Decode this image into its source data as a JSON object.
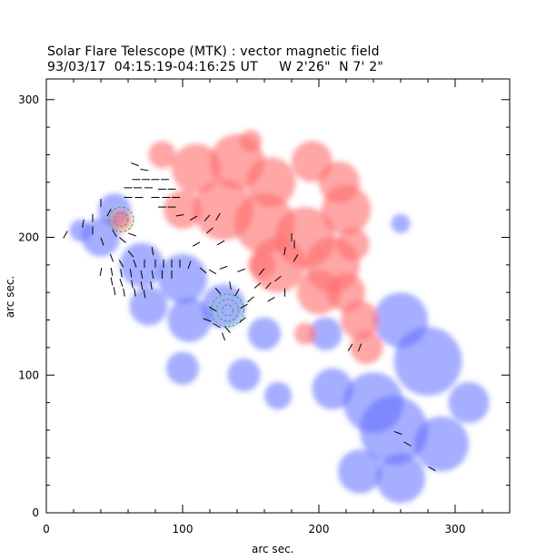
{
  "title": "Solar Flare Telescope (MTK) : vector magnetic field",
  "subtitle": "93/03/17  04:15:19-04:16:25 UT     W 2'26\"  N 7' 2\"",
  "chart_data": {
    "type": "heatmap",
    "xlabel": "arc sec.",
    "ylabel": "arc sec.",
    "xlim": [
      0,
      340
    ],
    "ylim": [
      0,
      315
    ],
    "xticks": [
      0,
      100,
      200,
      300
    ],
    "yticks": [
      0,
      100,
      200,
      300
    ],
    "colors": {
      "positive": "#ff6e6e",
      "negative": "#5c6cff",
      "contour": "#22bb44",
      "vector": "#000000",
      "axis": "#000000"
    },
    "positive_regions": [
      {
        "x": 85,
        "y": 260,
        "r": 10
      },
      {
        "x": 110,
        "y": 250,
        "r": 18
      },
      {
        "x": 140,
        "y": 255,
        "r": 20
      },
      {
        "x": 165,
        "y": 240,
        "r": 18
      },
      {
        "x": 195,
        "y": 255,
        "r": 15
      },
      {
        "x": 215,
        "y": 240,
        "r": 15
      },
      {
        "x": 220,
        "y": 220,
        "r": 18
      },
      {
        "x": 130,
        "y": 220,
        "r": 22
      },
      {
        "x": 160,
        "y": 210,
        "r": 22
      },
      {
        "x": 190,
        "y": 200,
        "r": 22
      },
      {
        "x": 170,
        "y": 180,
        "r": 20
      },
      {
        "x": 210,
        "y": 180,
        "r": 20
      },
      {
        "x": 200,
        "y": 160,
        "r": 16
      },
      {
        "x": 225,
        "y": 195,
        "r": 12
      },
      {
        "x": 220,
        "y": 160,
        "r": 14
      },
      {
        "x": 230,
        "y": 140,
        "r": 14
      },
      {
        "x": 235,
        "y": 120,
        "r": 12
      },
      {
        "x": 100,
        "y": 220,
        "r": 14
      },
      {
        "x": 55,
        "y": 212,
        "r": 8
      },
      {
        "x": 190,
        "y": 130,
        "r": 8
      },
      {
        "x": 150,
        "y": 270,
        "r": 8
      },
      {
        "x": 158,
        "y": 180,
        "r": 10
      }
    ],
    "negative_regions": [
      {
        "x": 50,
        "y": 220,
        "r": 12
      },
      {
        "x": 40,
        "y": 200,
        "r": 14
      },
      {
        "x": 25,
        "y": 205,
        "r": 8
      },
      {
        "x": 70,
        "y": 180,
        "r": 16
      },
      {
        "x": 100,
        "y": 170,
        "r": 18
      },
      {
        "x": 130,
        "y": 150,
        "r": 16
      },
      {
        "x": 75,
        "y": 150,
        "r": 14
      },
      {
        "x": 105,
        "y": 140,
        "r": 16
      },
      {
        "x": 160,
        "y": 130,
        "r": 12
      },
      {
        "x": 205,
        "y": 130,
        "r": 12
      },
      {
        "x": 255,
        "y": 60,
        "r": 25
      },
      {
        "x": 280,
        "y": 110,
        "r": 25
      },
      {
        "x": 260,
        "y": 140,
        "r": 20
      },
      {
        "x": 240,
        "y": 80,
        "r": 22
      },
      {
        "x": 290,
        "y": 50,
        "r": 20
      },
      {
        "x": 210,
        "y": 90,
        "r": 15
      },
      {
        "x": 260,
        "y": 25,
        "r": 18
      },
      {
        "x": 230,
        "y": 30,
        "r": 16
      },
      {
        "x": 310,
        "y": 80,
        "r": 15
      },
      {
        "x": 100,
        "y": 105,
        "r": 12
      },
      {
        "x": 145,
        "y": 100,
        "r": 12
      },
      {
        "x": 170,
        "y": 85,
        "r": 10
      },
      {
        "x": 260,
        "y": 210,
        "r": 7
      }
    ],
    "contours": [
      {
        "x": 133,
        "y": 147,
        "radii": [
          4,
          8,
          12
        ]
      },
      {
        "x": 55,
        "y": 213,
        "radii": [
          5,
          9
        ]
      }
    ],
    "vectors": [
      {
        "x": 65,
        "y": 253,
        "a": 160
      },
      {
        "x": 72,
        "y": 249,
        "a": 170
      },
      {
        "x": 66,
        "y": 242,
        "a": 0
      },
      {
        "x": 73,
        "y": 242,
        "a": 0
      },
      {
        "x": 80,
        "y": 242,
        "a": 0
      },
      {
        "x": 87,
        "y": 242,
        "a": 0
      },
      {
        "x": 60,
        "y": 236,
        "a": 0
      },
      {
        "x": 67,
        "y": 236,
        "a": 0
      },
      {
        "x": 75,
        "y": 236,
        "a": 0
      },
      {
        "x": 85,
        "y": 235,
        "a": 0
      },
      {
        "x": 92,
        "y": 235,
        "a": 0
      },
      {
        "x": 60,
        "y": 229,
        "a": 0
      },
      {
        "x": 68,
        "y": 229,
        "a": 0
      },
      {
        "x": 80,
        "y": 229,
        "a": 0
      },
      {
        "x": 88,
        "y": 229,
        "a": 0
      },
      {
        "x": 95,
        "y": 229,
        "a": 0
      },
      {
        "x": 85,
        "y": 222,
        "a": 0
      },
      {
        "x": 92,
        "y": 222,
        "a": 0
      },
      {
        "x": 98,
        "y": 216,
        "a": 10
      },
      {
        "x": 108,
        "y": 214,
        "a": 30
      },
      {
        "x": 118,
        "y": 214,
        "a": 50
      },
      {
        "x": 126,
        "y": 215,
        "a": 60
      },
      {
        "x": 120,
        "y": 205,
        "a": 40
      },
      {
        "x": 128,
        "y": 196,
        "a": 30
      },
      {
        "x": 110,
        "y": 195,
        "a": 30
      },
      {
        "x": 40,
        "y": 225,
        "a": 90
      },
      {
        "x": 46,
        "y": 218,
        "a": 60
      },
      {
        "x": 34,
        "y": 214,
        "a": 90
      },
      {
        "x": 34,
        "y": 205,
        "a": 90
      },
      {
        "x": 27,
        "y": 210,
        "a": 80
      },
      {
        "x": 14,
        "y": 202,
        "a": 60
      },
      {
        "x": 50,
        "y": 203,
        "a": 120
      },
      {
        "x": 56,
        "y": 198,
        "a": 140
      },
      {
        "x": 41,
        "y": 197,
        "a": 110
      },
      {
        "x": 63,
        "y": 202,
        "a": 160
      },
      {
        "x": 62,
        "y": 188,
        "a": 130
      },
      {
        "x": 78,
        "y": 190,
        "a": 100
      },
      {
        "x": 48,
        "y": 185,
        "a": 110
      },
      {
        "x": 55,
        "y": 181,
        "a": 120
      },
      {
        "x": 65,
        "y": 181,
        "a": 110
      },
      {
        "x": 72,
        "y": 181,
        "a": 90
      },
      {
        "x": 80,
        "y": 181,
        "a": 90
      },
      {
        "x": 86,
        "y": 181,
        "a": 90
      },
      {
        "x": 92,
        "y": 181,
        "a": 90
      },
      {
        "x": 98,
        "y": 181,
        "a": 90
      },
      {
        "x": 105,
        "y": 180,
        "a": 70
      },
      {
        "x": 40,
        "y": 175,
        "a": 80
      },
      {
        "x": 48,
        "y": 175,
        "a": 100
      },
      {
        "x": 55,
        "y": 174,
        "a": 100
      },
      {
        "x": 62,
        "y": 174,
        "a": 100
      },
      {
        "x": 70,
        "y": 173,
        "a": 100
      },
      {
        "x": 78,
        "y": 173,
        "a": 100
      },
      {
        "x": 85,
        "y": 173,
        "a": 90
      },
      {
        "x": 92,
        "y": 173,
        "a": 90
      },
      {
        "x": 48,
        "y": 168,
        "a": 100
      },
      {
        "x": 55,
        "y": 167,
        "a": 110
      },
      {
        "x": 63,
        "y": 166,
        "a": 100
      },
      {
        "x": 70,
        "y": 165,
        "a": 100
      },
      {
        "x": 77,
        "y": 165,
        "a": 100
      },
      {
        "x": 50,
        "y": 161,
        "a": 100
      },
      {
        "x": 57,
        "y": 160,
        "a": 100
      },
      {
        "x": 65,
        "y": 160,
        "a": 100
      },
      {
        "x": 72,
        "y": 159,
        "a": 100
      },
      {
        "x": 115,
        "y": 176,
        "a": 140
      },
      {
        "x": 122,
        "y": 175,
        "a": 150
      },
      {
        "x": 130,
        "y": 178,
        "a": 20
      },
      {
        "x": 135,
        "y": 165,
        "a": 100
      },
      {
        "x": 126,
        "y": 161,
        "a": 130
      },
      {
        "x": 140,
        "y": 160,
        "a": 60
      },
      {
        "x": 145,
        "y": 150,
        "a": 30
      },
      {
        "x": 122,
        "y": 148,
        "a": 150
      },
      {
        "x": 118,
        "y": 140,
        "a": 160
      },
      {
        "x": 125,
        "y": 136,
        "a": 150
      },
      {
        "x": 133,
        "y": 133,
        "a": 130
      },
      {
        "x": 144,
        "y": 140,
        "a": 40
      },
      {
        "x": 150,
        "y": 155,
        "a": 40
      },
      {
        "x": 130,
        "y": 128,
        "a": 110
      },
      {
        "x": 155,
        "y": 165,
        "a": 40
      },
      {
        "x": 163,
        "y": 165,
        "a": 50
      },
      {
        "x": 170,
        "y": 170,
        "a": 40
      },
      {
        "x": 175,
        "y": 160,
        "a": 90
      },
      {
        "x": 165,
        "y": 155,
        "a": 30
      },
      {
        "x": 175,
        "y": 190,
        "a": 80
      },
      {
        "x": 183,
        "y": 185,
        "a": 60
      },
      {
        "x": 182,
        "y": 195,
        "a": 90
      },
      {
        "x": 180,
        "y": 200,
        "a": 90
      },
      {
        "x": 143,
        "y": 176,
        "a": 20
      },
      {
        "x": 158,
        "y": 175,
        "a": 50
      },
      {
        "x": 223,
        "y": 120,
        "a": 60
      },
      {
        "x": 230,
        "y": 120,
        "a": 70
      },
      {
        "x": 258,
        "y": 58,
        "a": 160
      },
      {
        "x": 265,
        "y": 50,
        "a": 150
      },
      {
        "x": 283,
        "y": 32,
        "a": 150
      }
    ]
  }
}
